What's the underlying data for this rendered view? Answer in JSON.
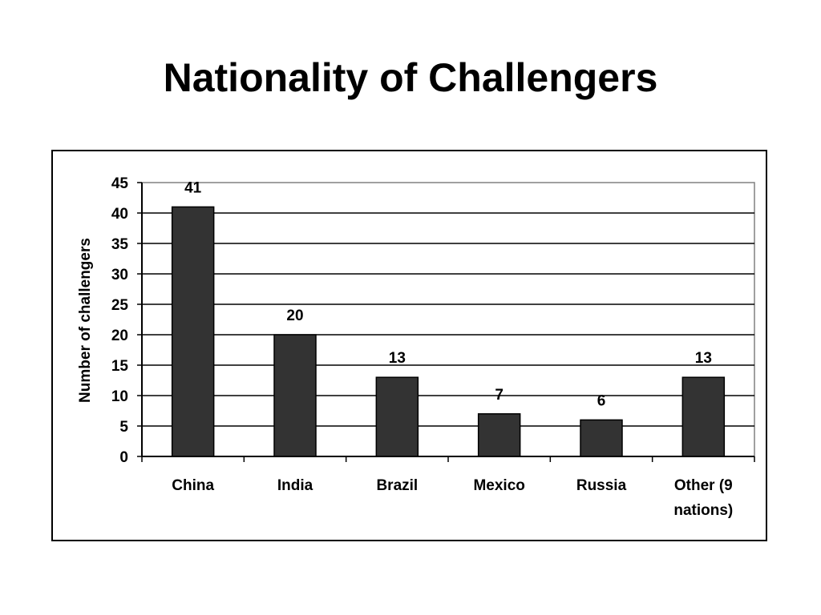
{
  "chart_data": {
    "type": "bar",
    "title": "Nationality of Challengers",
    "categories": [
      "China",
      "India",
      "Brazil",
      "Mexico",
      "Russia",
      "Other (9 nations)"
    ],
    "category_lines": [
      [
        "China"
      ],
      [
        "India"
      ],
      [
        "Brazil"
      ],
      [
        "Mexico"
      ],
      [
        "Russia"
      ],
      [
        "Other (9",
        "nations)"
      ]
    ],
    "values": [
      41,
      20,
      13,
      7,
      6,
      13
    ],
    "data_labels": [
      "41",
      "20",
      "13",
      "7",
      "6",
      "13"
    ],
    "xlabel": "",
    "ylabel": "Number of challengers",
    "ylim": [
      0,
      45
    ],
    "yticks": [
      0,
      5,
      10,
      15,
      20,
      25,
      30,
      35,
      40,
      45
    ],
    "grid": true,
    "legend": "none",
    "bar_color": "#333333",
    "plot_border_color": "#808080"
  }
}
